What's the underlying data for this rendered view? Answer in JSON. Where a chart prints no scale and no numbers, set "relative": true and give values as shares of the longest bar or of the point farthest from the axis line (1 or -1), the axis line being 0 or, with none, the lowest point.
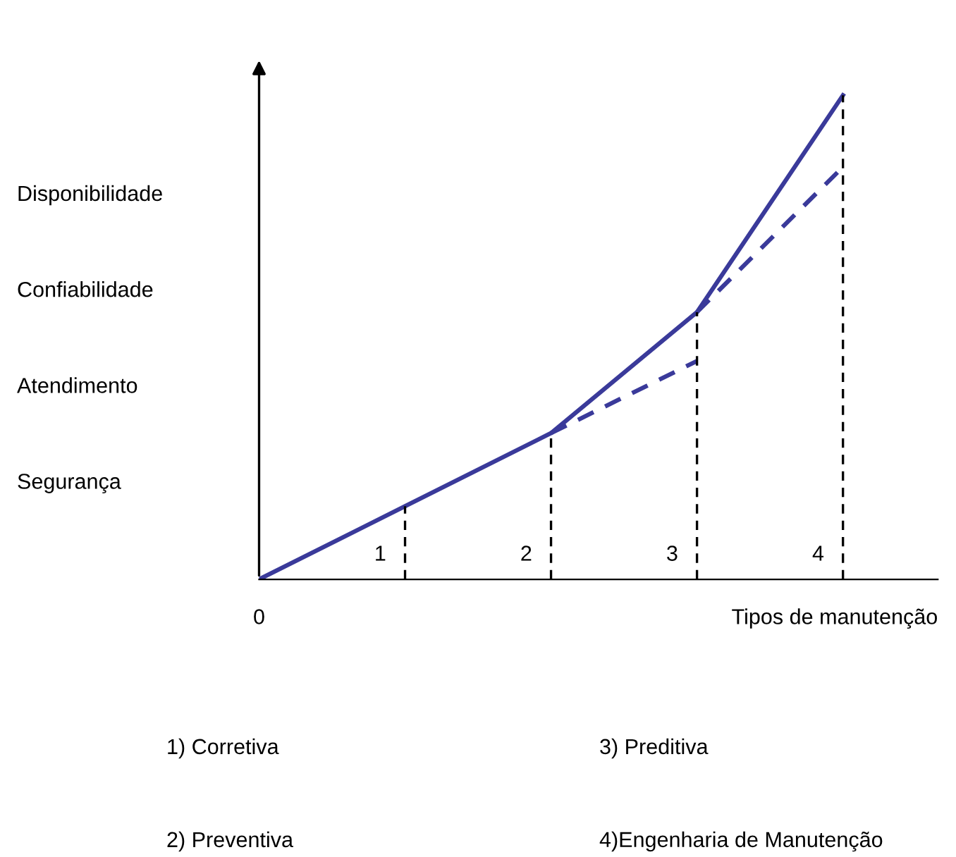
{
  "chart_data": {
    "type": "line",
    "relative": true,
    "xlabel": "Tipos de manutenção",
    "categories": [
      null,
      null,
      null,
      null,
      null
    ],
    "series": [
      {
        "color": "#3a3a9a",
        "values": [
          0,
          0.151,
          0.302,
          0.552,
          1
        ],
        "line_style": "solid"
      },
      {
        "color": "#3a3a9a",
        "values": [
          null,
          null,
          0.302,
          0.451,
          null
        ],
        "line_style": "dashed"
      },
      {
        "color": "#3a3a9a",
        "values": [
          null,
          null,
          null,
          0.552,
          0.852
        ],
        "line_style": "dashed"
      }
    ],
    "annotations": [
      "Segurança",
      "Atendimento",
      "Confiabilidade",
      "Disponibilidade",
      "1) Corretiva",
      "2) Preventiva",
      "3) Preditiva",
      "4)Engenharia de Manutenção",
      "0",
      "1",
      "2",
      "3",
      "4"
    ]
  }
}
